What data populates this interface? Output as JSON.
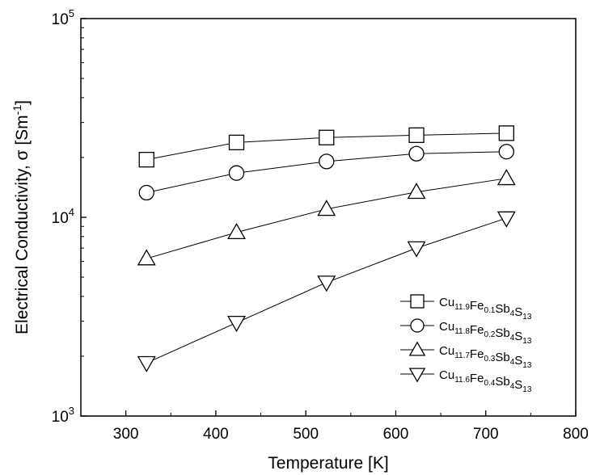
{
  "chart_data": {
    "type": "line",
    "xlabel": "Temperature [K]",
    "ylabel": {
      "text": "Electrical Conductivity, σ [Sm",
      "sup": "-1",
      "close": "]"
    },
    "xlim": [
      250,
      800
    ],
    "ylim": [
      1000,
      100000
    ],
    "yscale": "log",
    "x_ticks": [
      300,
      400,
      500,
      600,
      700,
      800
    ],
    "y_ticks": [
      {
        "value": 1000,
        "base": "10",
        "exp": "3"
      },
      {
        "value": 10000,
        "base": "10",
        "exp": "4"
      },
      {
        "value": 100000,
        "base": "10",
        "exp": "5"
      }
    ],
    "grid": false,
    "legend_position": "bottom-right",
    "series": [
      {
        "label_parts": [
          [
            "Cu",
            "11.9"
          ],
          [
            "Fe",
            "0.1"
          ],
          [
            "Sb",
            "4"
          ],
          [
            "S",
            "13"
          ]
        ],
        "marker": "square",
        "x": [
          323,
          423,
          523,
          623,
          723
        ],
        "y": [
          19500,
          23800,
          25200,
          25900,
          26500
        ]
      },
      {
        "label_parts": [
          [
            "Cu",
            "11.8"
          ],
          [
            "Fe",
            "0.2"
          ],
          [
            "Sb",
            "4"
          ],
          [
            "S",
            "13"
          ]
        ],
        "marker": "circle",
        "x": [
          323,
          423,
          523,
          623,
          723
        ],
        "y": [
          13300,
          16700,
          19100,
          20900,
          21400
        ]
      },
      {
        "label_parts": [
          [
            "Cu",
            "11.7"
          ],
          [
            "Fe",
            "0.3"
          ],
          [
            "Sb",
            "4"
          ],
          [
            "S",
            "13"
          ]
        ],
        "marker": "triangle-up",
        "x": [
          323,
          423,
          523,
          623,
          723
        ],
        "y": [
          6200,
          8400,
          11000,
          13400,
          15700
        ]
      },
      {
        "label_parts": [
          [
            "Cu",
            "11.6"
          ],
          [
            "Fe",
            "0.4"
          ],
          [
            "Sb",
            "4"
          ],
          [
            "S",
            "13"
          ]
        ],
        "marker": "triangle-down",
        "x": [
          323,
          423,
          523,
          623,
          723
        ],
        "y": [
          1850,
          2950,
          4700,
          7000,
          9900
        ]
      }
    ]
  }
}
